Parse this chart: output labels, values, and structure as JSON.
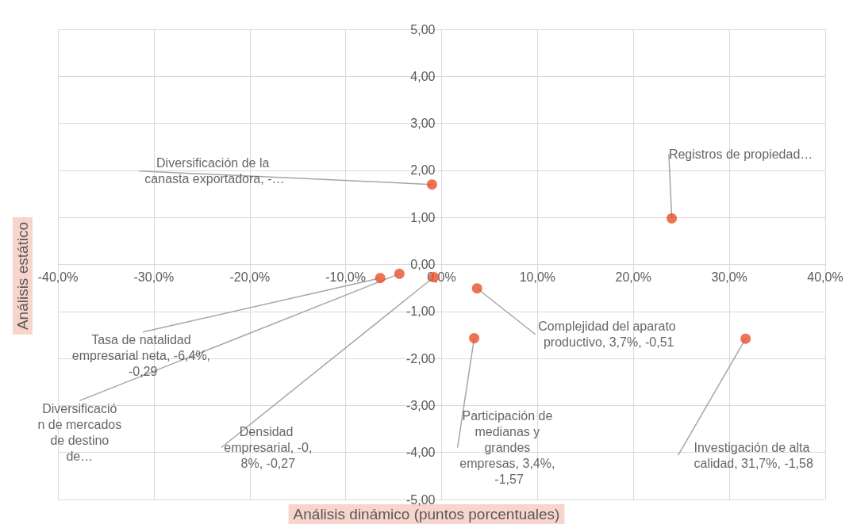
{
  "chart_data": {
    "type": "scatter",
    "xlabel": "Análisis dinámico (puntos porcentuales)",
    "ylabel": "Análisis estático",
    "x": [
      -1.0,
      24.0,
      -6.4,
      -4.4,
      -0.8,
      3.7,
      3.4,
      31.7
    ],
    "values": [
      1.7,
      0.98,
      -0.29,
      -0.2,
      -0.27,
      -0.51,
      -1.57,
      -1.58
    ],
    "color": "#e8502a",
    "marker": "circle",
    "grid": true,
    "xlim": [
      -40,
      40
    ],
    "ylim": [
      -5,
      5
    ],
    "xticks": [
      {
        "value": -40,
        "label": "-40,0%"
      },
      {
        "value": -30,
        "label": "-30,0%"
      },
      {
        "value": -20,
        "label": "-20,0%"
      },
      {
        "value": -10,
        "label": "-10,0%"
      },
      {
        "value": 0,
        "label": "0,0%"
      },
      {
        "value": 10,
        "label": "10,0%"
      },
      {
        "value": 20,
        "label": "20,0%"
      },
      {
        "value": 30,
        "label": "30,0%"
      },
      {
        "value": 40,
        "label": "40,0%"
      }
    ],
    "yticks": [
      {
        "value": -5,
        "label": "-5,00"
      },
      {
        "value": -4,
        "label": "-4,00"
      },
      {
        "value": -3,
        "label": "-3,00"
      },
      {
        "value": -2,
        "label": "-2,00"
      },
      {
        "value": -1,
        "label": "-1,00"
      },
      {
        "value": 0,
        "label": "0,00"
      },
      {
        "value": 1,
        "label": "1,00"
      },
      {
        "value": 2,
        "label": "2,00"
      },
      {
        "value": 3,
        "label": "3,00"
      },
      {
        "value": 4,
        "label": "4,00"
      },
      {
        "value": 5,
        "label": "5,00"
      }
    ],
    "annotations": [
      {
        "text": "Diversificación de la canasta exportadora, -…",
        "x": -1.0,
        "y": 1.7
      },
      {
        "text": "Registros de propiedad…",
        "x": 24.0,
        "y": 0.98
      },
      {
        "text": "Tasa de natalidad empresarial neta, -6,4%, -0,29",
        "x": -6.4,
        "y": -0.29
      },
      {
        "text": "Diversificación de mercados de destino de…",
        "x": -4.4,
        "y": -0.2
      },
      {
        "text": "Densidad empresarial, -0,8%, -0,27",
        "x": -0.8,
        "y": -0.27
      },
      {
        "text": "Complejidad del aparato productivo, 3,7%, -0,51",
        "x": 3.7,
        "y": -0.51
      },
      {
        "text": "Participación de medianas y grandes empresas, 3,4%, -1,57",
        "x": 3.4,
        "y": -1.57
      },
      {
        "text": "Investigación de alta calidad, 31,7%, -1,58",
        "x": 31.7,
        "y": -1.58
      }
    ]
  }
}
